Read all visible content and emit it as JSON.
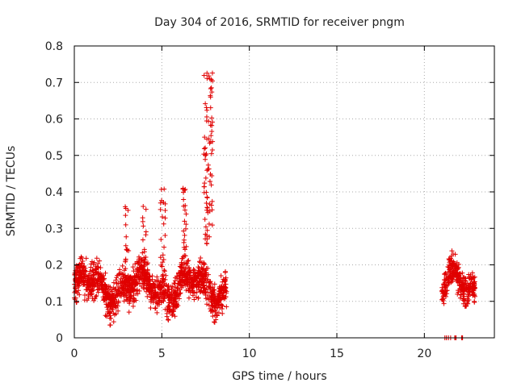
{
  "chart_data": {
    "type": "scatter",
    "title": "Day 304 of 2016, SRMTID for receiver pngm",
    "xlabel": "GPS time / hours",
    "ylabel": "SRMTID / TECUs",
    "xlim": [
      0,
      24
    ],
    "ylim": [
      0,
      0.8
    ],
    "xticks": [
      0,
      5,
      10,
      15,
      20
    ],
    "yticks": [
      0,
      0.1,
      0.2,
      0.3,
      0.4,
      0.5,
      0.6,
      0.7,
      0.8
    ],
    "ytick_labels": [
      "0",
      "0.1",
      "0.2",
      "0.3",
      "0.4",
      "0.5",
      "0.6",
      "0.7",
      "0.8"
    ],
    "xtick_labels": [
      "0",
      "5",
      "10",
      "15",
      "20"
    ],
    "grid": true,
    "marker": "+",
    "color": "#e00000",
    "series": [
      {
        "name": "SRMTID",
        "clusters": [
          {
            "x": [
              0.0,
              8.7
            ],
            "baseline": 0.14,
            "spread": 0.05,
            "count": 1400
          },
          {
            "x": [
              2.9,
              3.1
            ],
            "peak": 0.37,
            "count": 20
          },
          {
            "x": [
              3.9,
              4.1
            ],
            "peak": 0.37,
            "count": 20
          },
          {
            "x": [
              4.9,
              5.2
            ],
            "peak": 0.41,
            "count": 25
          },
          {
            "x": [
              6.2,
              6.4
            ],
            "peak": 0.41,
            "count": 25
          },
          {
            "x": [
              7.4,
              7.9
            ],
            "peak": 0.73,
            "count": 80
          },
          {
            "x": [
              21.0,
              22.9
            ],
            "baseline": 0.14,
            "spread": 0.04,
            "count": 300
          },
          {
            "x": [
              21.0,
              22.2
            ],
            "constant": 0.0,
            "count": 12
          }
        ]
      }
    ]
  }
}
